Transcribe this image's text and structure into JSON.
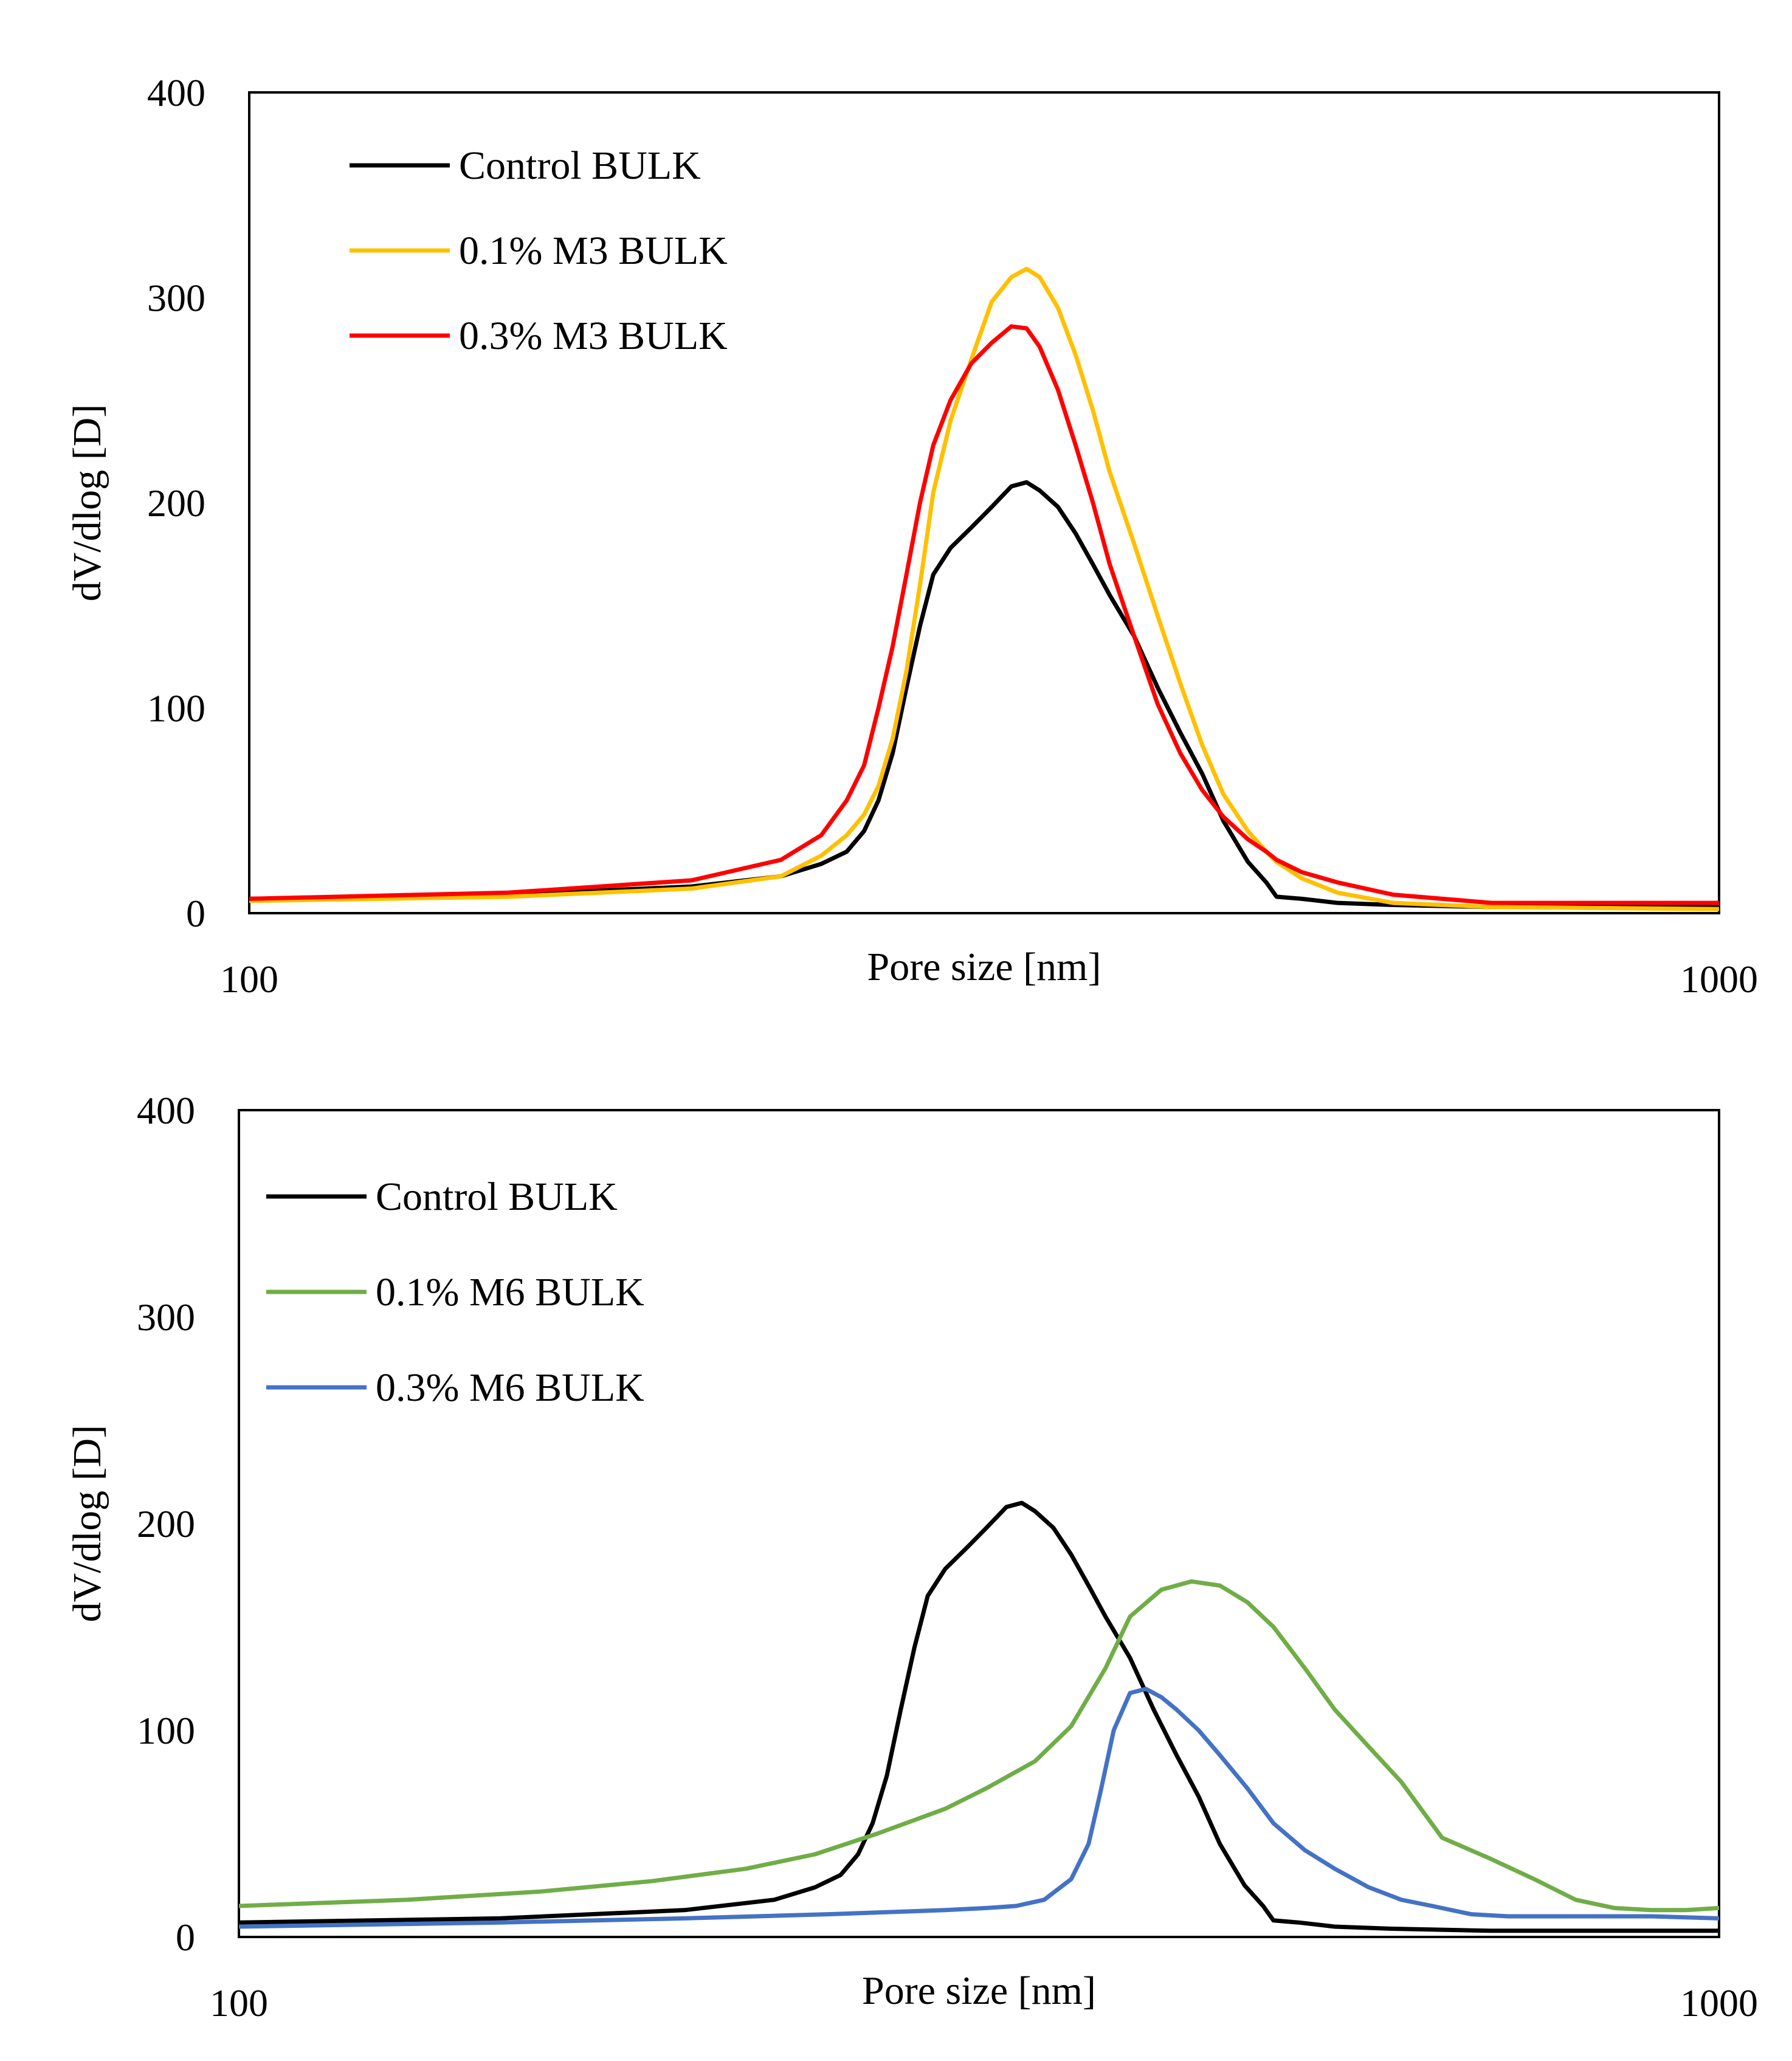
{
  "chart_data": [
    {
      "type": "line",
      "xscale": "log",
      "xlim": [
        100,
        1000
      ],
      "ylim": [
        0,
        400
      ],
      "xlabel": "Pore size [nm]",
      "ylabel": "dV/dlog [D]",
      "x_tick_labels": [
        "100",
        "1000"
      ],
      "y_tick_labels": [
        "0",
        "100",
        "200",
        "300",
        "400"
      ],
      "legend_position": "top-left",
      "series": [
        {
          "name": "Control BULK",
          "color": "#000000",
          "x": [
            100,
            150,
            200,
            230,
            245,
            255,
            262,
            268,
            274,
            280,
            286,
            292,
            300,
            310,
            320,
            330,
            338,
            345,
            355,
            365,
            375,
            385,
            400,
            415,
            430,
            445,
            460,
            478,
            492,
            500,
            520,
            550,
            600,
            700,
            1000
          ],
          "y": [
            7,
            9,
            13,
            18,
            24,
            30,
            40,
            55,
            78,
            110,
            140,
            165,
            178,
            188,
            198,
            208,
            210,
            206,
            198,
            185,
            170,
            155,
            135,
            110,
            88,
            68,
            45,
            25,
            15,
            8,
            7,
            5,
            4,
            3,
            3
          ]
        },
        {
          "name": "0.1% M3 BULK",
          "color": "#FFC000",
          "x": [
            100,
            150,
            200,
            230,
            245,
            255,
            262,
            268,
            274,
            280,
            286,
            292,
            300,
            310,
            320,
            330,
            338,
            345,
            355,
            365,
            375,
            385,
            400,
            415,
            430,
            445,
            460,
            478,
            492,
            500,
            520,
            550,
            600,
            700,
            1000
          ],
          "y": [
            6,
            8,
            12,
            18,
            28,
            38,
            48,
            62,
            85,
            118,
            160,
            205,
            240,
            270,
            298,
            310,
            314,
            310,
            295,
            272,
            245,
            215,
            180,
            145,
            112,
            82,
            58,
            40,
            30,
            25,
            17,
            10,
            5,
            3,
            2
          ]
        },
        {
          "name": "0.3% M3 BULK",
          "color": "#FF0000",
          "x": [
            100,
            150,
            200,
            230,
            245,
            255,
            262,
            268,
            274,
            280,
            286,
            292,
            300,
            310,
            320,
            330,
            338,
            345,
            355,
            365,
            375,
            385,
            400,
            415,
            430,
            445,
            460,
            478,
            492,
            500,
            520,
            550,
            600,
            700,
            1000
          ],
          "y": [
            7,
            10,
            16,
            26,
            38,
            55,
            72,
            100,
            130,
            165,
            200,
            228,
            250,
            268,
            278,
            286,
            285,
            276,
            255,
            228,
            200,
            170,
            135,
            102,
            78,
            60,
            47,
            36,
            30,
            26,
            20,
            15,
            9,
            5,
            5
          ]
        }
      ]
    },
    {
      "type": "line",
      "xscale": "log",
      "xlim": [
        100,
        1000
      ],
      "ylim": [
        0,
        400
      ],
      "xlabel": "Pore size [nm]",
      "ylabel": "dV/dlog [D]",
      "x_tick_labels": [
        "100",
        "1000"
      ],
      "y_tick_labels": [
        "0",
        "100",
        "200",
        "300",
        "400"
      ],
      "legend_position": "top-left",
      "series": [
        {
          "name": "Control BULK",
          "color": "#000000",
          "x": [
            100,
            150,
            200,
            230,
            245,
            255,
            262,
            268,
            274,
            280,
            286,
            292,
            300,
            310,
            320,
            330,
            338,
            345,
            355,
            365,
            375,
            385,
            400,
            415,
            430,
            445,
            460,
            478,
            492,
            500,
            520,
            550,
            600,
            700,
            1000
          ],
          "y": [
            7,
            9,
            13,
            18,
            24,
            30,
            40,
            55,
            78,
            110,
            140,
            165,
            178,
            188,
            198,
            208,
            210,
            206,
            198,
            185,
            170,
            155,
            135,
            110,
            88,
            68,
            45,
            25,
            15,
            8,
            7,
            5,
            4,
            3,
            3
          ]
        },
        {
          "name": "0.1% M6 BULK",
          "color": "#70AD47",
          "x": [
            100,
            130,
            160,
            190,
            220,
            245,
            270,
            300,
            320,
            345,
            365,
            385,
            400,
            420,
            440,
            460,
            480,
            500,
            525,
            550,
            580,
            610,
            650,
            700,
            750,
            800,
            850,
            900,
            950,
            1000
          ],
          "y": [
            15,
            18,
            22,
            27,
            33,
            40,
            50,
            62,
            72,
            85,
            102,
            130,
            155,
            168,
            172,
            170,
            162,
            150,
            130,
            110,
            92,
            75,
            48,
            38,
            28,
            18,
            14,
            13,
            13,
            14
          ]
        },
        {
          "name": "0.3% M6 BULK",
          "color": "#4472C4",
          "x": [
            100,
            150,
            200,
            250,
            300,
            320,
            335,
            350,
            365,
            375,
            382,
            390,
            400,
            410,
            420,
            430,
            445,
            460,
            480,
            500,
            525,
            550,
            580,
            610,
            640,
            680,
            720,
            800,
            900,
            1000
          ],
          "y": [
            5,
            7,
            9,
            11,
            13,
            14,
            15,
            18,
            28,
            45,
            70,
            100,
            118,
            120,
            116,
            110,
            100,
            88,
            72,
            55,
            42,
            33,
            24,
            18,
            15,
            11,
            10,
            10,
            10,
            9
          ]
        }
      ]
    }
  ]
}
